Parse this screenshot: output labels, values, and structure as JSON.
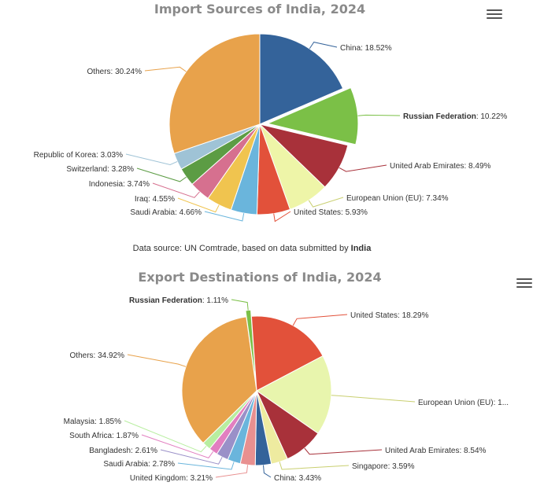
{
  "chart_data": [
    {
      "type": "pie",
      "title": "Import Sources of India, 2024",
      "slices": [
        {
          "name": "China",
          "value": 18.52,
          "color": "#34639a",
          "label": "China: 18.52%",
          "bold": false
        },
        {
          "name": "Russian Federation",
          "value": 10.22,
          "color": "#7bc047",
          "label_bold": "Russian Federation",
          "label_rest": ": 10.22%",
          "bold": true
        },
        {
          "name": "United Arab Emirates",
          "value": 8.49,
          "color": "#a8313a",
          "label": "United Arab Emirates: 8.49%",
          "bold": false
        },
        {
          "name": "European Union (EU)",
          "value": 7.34,
          "color": "#eef5a8",
          "label": "European Union (EU): 7.34%",
          "bold": false
        },
        {
          "name": "United States",
          "value": 5.93,
          "color": "#e2513a",
          "label": "United States: 5.93%",
          "bold": false
        },
        {
          "name": "Saudi Arabia",
          "value": 4.66,
          "color": "#6ab5dc",
          "label": "Saudi Arabia: 4.66%",
          "bold": false
        },
        {
          "name": "Iraq",
          "value": 4.55,
          "color": "#f0c44f",
          "label": "Iraq: 4.55%",
          "bold": false
        },
        {
          "name": "Indonesia",
          "value": 3.74,
          "color": "#d6708f",
          "label": "Indonesia: 3.74%",
          "bold": false
        },
        {
          "name": "Switzerland",
          "value": 3.28,
          "color": "#5c9c44",
          "label": "Switzerland: 3.28%",
          "bold": false
        },
        {
          "name": "Republic of Korea",
          "value": 3.03,
          "color": "#9fc3d6",
          "label": "Republic of Korea: 3.03%",
          "bold": false
        },
        {
          "name": "Others",
          "value": 30.24,
          "color": "#e8a24b",
          "label": "Others: 30.24%",
          "bold": false
        }
      ],
      "credit": {
        "prefix": "Data source: UN Comtrade, based on data submitted by ",
        "bold": "India"
      }
    },
    {
      "type": "pie",
      "title": "Export Destinations of India, 2024",
      "slices": [
        {
          "name": "Russian Federation",
          "value": 1.11,
          "color": "#7bc047",
          "label_bold": "Russian Federation",
          "label_rest": ": 1.11%",
          "bold": true
        },
        {
          "name": "United States",
          "value": 18.29,
          "color": "#e2513a",
          "label": "United States: 18.29%",
          "bold": false
        },
        {
          "name": "European Union (EU)",
          "value": 17.3,
          "color": "#e8f5ad",
          "label": "European Union (EU): 1...",
          "bold": false
        },
        {
          "name": "United Arab Emirates",
          "value": 8.54,
          "color": "#a8313a",
          "label": "United Arab Emirates: 8.54%",
          "bold": false
        },
        {
          "name": "Singapore",
          "value": 3.59,
          "color": "#eeeba0",
          "label": "Singapore: 3.59%",
          "bold": false
        },
        {
          "name": "China",
          "value": 3.43,
          "color": "#34639a",
          "label": "China: 3.43%",
          "bold": false
        },
        {
          "name": "United Kingdom",
          "value": 3.21,
          "color": "#e89090",
          "label": "United Kingdom: 3.21%",
          "bold": false
        },
        {
          "name": "Saudi Arabia",
          "value": 2.78,
          "color": "#6ab5dc",
          "label": "Saudi Arabia: 2.78%",
          "bold": false
        },
        {
          "name": "Bangladesh",
          "value": 2.61,
          "color": "#9a90c8",
          "label": "Bangladesh: 2.61%",
          "bold": false
        },
        {
          "name": "South Africa",
          "value": 1.87,
          "color": "#e27fc0",
          "label": "South Africa: 1.87%",
          "bold": false
        },
        {
          "name": "Malaysia",
          "value": 1.85,
          "color": "#b8eea0",
          "label": "Malaysia: 1.85%",
          "bold": false
        },
        {
          "name": "Others",
          "value": 34.92,
          "color": "#e8a24b",
          "label": "Others: 34.92%",
          "bold": false
        }
      ]
    }
  ]
}
